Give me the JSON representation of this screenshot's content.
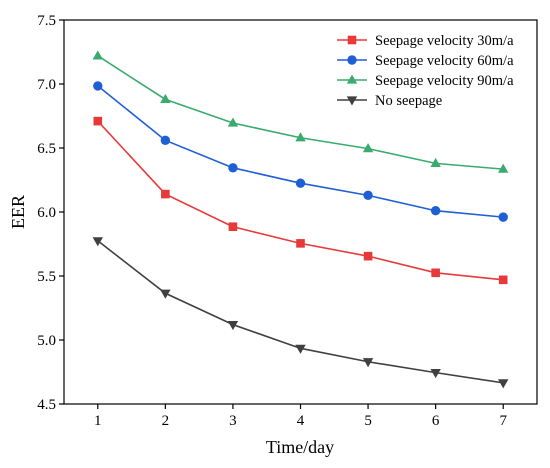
{
  "chart_data": {
    "type": "line",
    "title": "",
    "xlabel": "Time/day",
    "ylabel": "EER",
    "x": [
      1,
      2,
      3,
      4,
      5,
      6,
      7
    ],
    "xlim": [
      0.5,
      7.5
    ],
    "ylim": [
      4.5,
      7.5
    ],
    "x_ticks": [
      "1",
      "2",
      "3",
      "4",
      "5",
      "6",
      "7"
    ],
    "y_ticks": [
      "4.5",
      "5.0",
      "5.5",
      "6.0",
      "6.5",
      "7.0",
      "7.5"
    ],
    "grid": false,
    "legend_position": "top-right",
    "series": [
      {
        "name": "Seepage velocity 30m/a",
        "color": "#e8393a",
        "marker": "square",
        "values": [
          6.71,
          6.14,
          5.885,
          5.755,
          5.655,
          5.525,
          5.47
        ]
      },
      {
        "name": "Seepage velocity 60m/a",
        "color": "#1f5fd6",
        "marker": "circle",
        "values": [
          6.985,
          6.56,
          6.345,
          6.225,
          6.13,
          6.01,
          5.96
        ]
      },
      {
        "name": "Seepage velocity 90m/a",
        "color": "#3aab6e",
        "marker": "triangle-up",
        "values": [
          7.22,
          6.88,
          6.695,
          6.58,
          6.495,
          6.38,
          6.335
        ]
      },
      {
        "name": "No seepage",
        "color": "#404040",
        "marker": "triangle-down",
        "values": [
          5.775,
          5.365,
          5.12,
          4.935,
          4.83,
          4.745,
          4.665
        ]
      }
    ]
  }
}
